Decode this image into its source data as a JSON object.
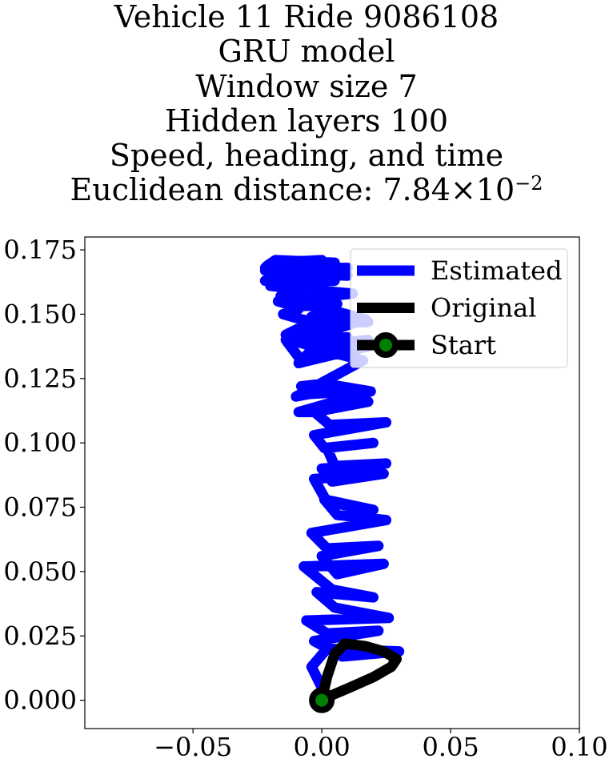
{
  "chart_data": {
    "type": "line",
    "title_lines": [
      "Vehicle 11 Ride 9086108",
      "GRU model",
      "Window size 7",
      "Hidden layers 100",
      "Speed, heading, and time"
    ],
    "distance_label": "Euclidean distance: ",
    "distance_mantissa": "7.84",
    "distance_times": "×10",
    "distance_exponent": "−2",
    "xlim": [
      -0.092,
      0.1
    ],
    "ylim": [
      -0.011,
      0.18
    ],
    "xticks": [
      -0.05,
      0.0,
      0.05,
      0.1
    ],
    "xtick_labels": [
      "−0.05",
      "0.00",
      "0.05",
      "0.10"
    ],
    "yticks": [
      0.0,
      0.025,
      0.05,
      0.075,
      0.1,
      0.125,
      0.15,
      0.175
    ],
    "ytick_labels": [
      "0.000",
      "0.025",
      "0.050",
      "0.075",
      "0.100",
      "0.125",
      "0.150",
      "0.175"
    ],
    "grid": false,
    "legend_position": "top-right",
    "series": [
      {
        "name": "Estimated",
        "color": "#0000ff",
        "x": [
          0.0,
          0.0,
          -0.004,
          0.002,
          0.03,
          0.008,
          -0.003,
          0.022,
          0.002,
          -0.006,
          0.026,
          0.005,
          -0.002,
          0.02,
          0.004,
          -0.007,
          0.024,
          0.006,
          0.0,
          0.022,
          0.002,
          -0.004,
          0.025,
          0.006,
          0.001,
          0.02,
          0.002,
          -0.003,
          0.024,
          0.004,
          0.0,
          0.025,
          0.005,
          0.002,
          0.02,
          0.001,
          -0.003,
          0.025,
          0.003,
          -0.004,
          0.018,
          -0.003,
          -0.009,
          0.019,
          0.001,
          -0.008,
          0.012,
          -0.005,
          -0.01,
          0.016,
          -0.003,
          -0.009,
          0.02,
          0.0,
          -0.002,
          0.018,
          -0.002,
          -0.012,
          0.012,
          -0.008,
          -0.014,
          0.01,
          -0.008,
          -0.011,
          0.017,
          0.002,
          -0.004,
          0.018,
          -0.006,
          -0.014,
          0.003,
          -0.008,
          -0.015,
          -0.009,
          -0.011,
          0.005,
          -0.016,
          -0.014,
          -0.013,
          0.006,
          -0.01,
          -0.017,
          0.012,
          -0.011,
          -0.02,
          0.005,
          -0.022,
          -0.014,
          0.005,
          -0.02,
          -0.022,
          0.003,
          -0.021,
          -0.014,
          0.01,
          -0.02,
          -0.019,
          0.0,
          -0.016,
          0.01,
          -0.016,
          -0.017,
          0.005,
          -0.022,
          -0.021,
          -0.018,
          0.005
        ],
        "y": [
          0.0,
          0.005,
          0.013,
          0.02,
          0.019,
          0.017,
          0.023,
          0.027,
          0.026,
          0.031,
          0.032,
          0.036,
          0.042,
          0.04,
          0.043,
          0.052,
          0.053,
          0.049,
          0.056,
          0.06,
          0.059,
          0.065,
          0.07,
          0.072,
          0.078,
          0.074,
          0.077,
          0.086,
          0.088,
          0.085,
          0.09,
          0.092,
          0.091,
          0.098,
          0.1,
          0.098,
          0.103,
          0.108,
          0.107,
          0.113,
          0.116,
          0.112,
          0.112,
          0.12,
          0.123,
          0.122,
          0.12,
          0.119,
          0.118,
          0.132,
          0.137,
          0.131,
          0.138,
          0.141,
          0.138,
          0.14,
          0.137,
          0.14,
          0.137,
          0.132,
          0.14,
          0.141,
          0.139,
          0.139,
          0.148,
          0.152,
          0.149,
          0.147,
          0.146,
          0.142,
          0.146,
          0.148,
          0.15,
          0.152,
          0.154,
          0.156,
          0.157,
          0.156,
          0.156,
          0.154,
          0.153,
          0.155,
          0.158,
          0.16,
          0.161,
          0.163,
          0.163,
          0.163,
          0.165,
          0.167,
          0.167,
          0.166,
          0.167,
          0.168,
          0.168,
          0.168,
          0.17,
          0.171,
          0.169,
          0.165,
          0.166,
          0.167,
          0.167,
          0.168,
          0.169,
          0.171,
          0.17
        ]
      },
      {
        "name": "Original",
        "color": "#000000",
        "x": [
          0.0,
          0.002,
          0.005,
          0.009,
          0.017,
          0.024,
          0.029,
          0.027,
          0.02,
          0.011,
          0.004,
          0.0
        ],
        "y": [
          0.0,
          0.009,
          0.018,
          0.022,
          0.021,
          0.019,
          0.016,
          0.013,
          0.009,
          0.005,
          0.002,
          0.0
        ]
      }
    ],
    "start": {
      "name": "Start",
      "x": 0.0,
      "y": 0.0,
      "edge_color": "#000000",
      "face_color": "#008000"
    }
  }
}
